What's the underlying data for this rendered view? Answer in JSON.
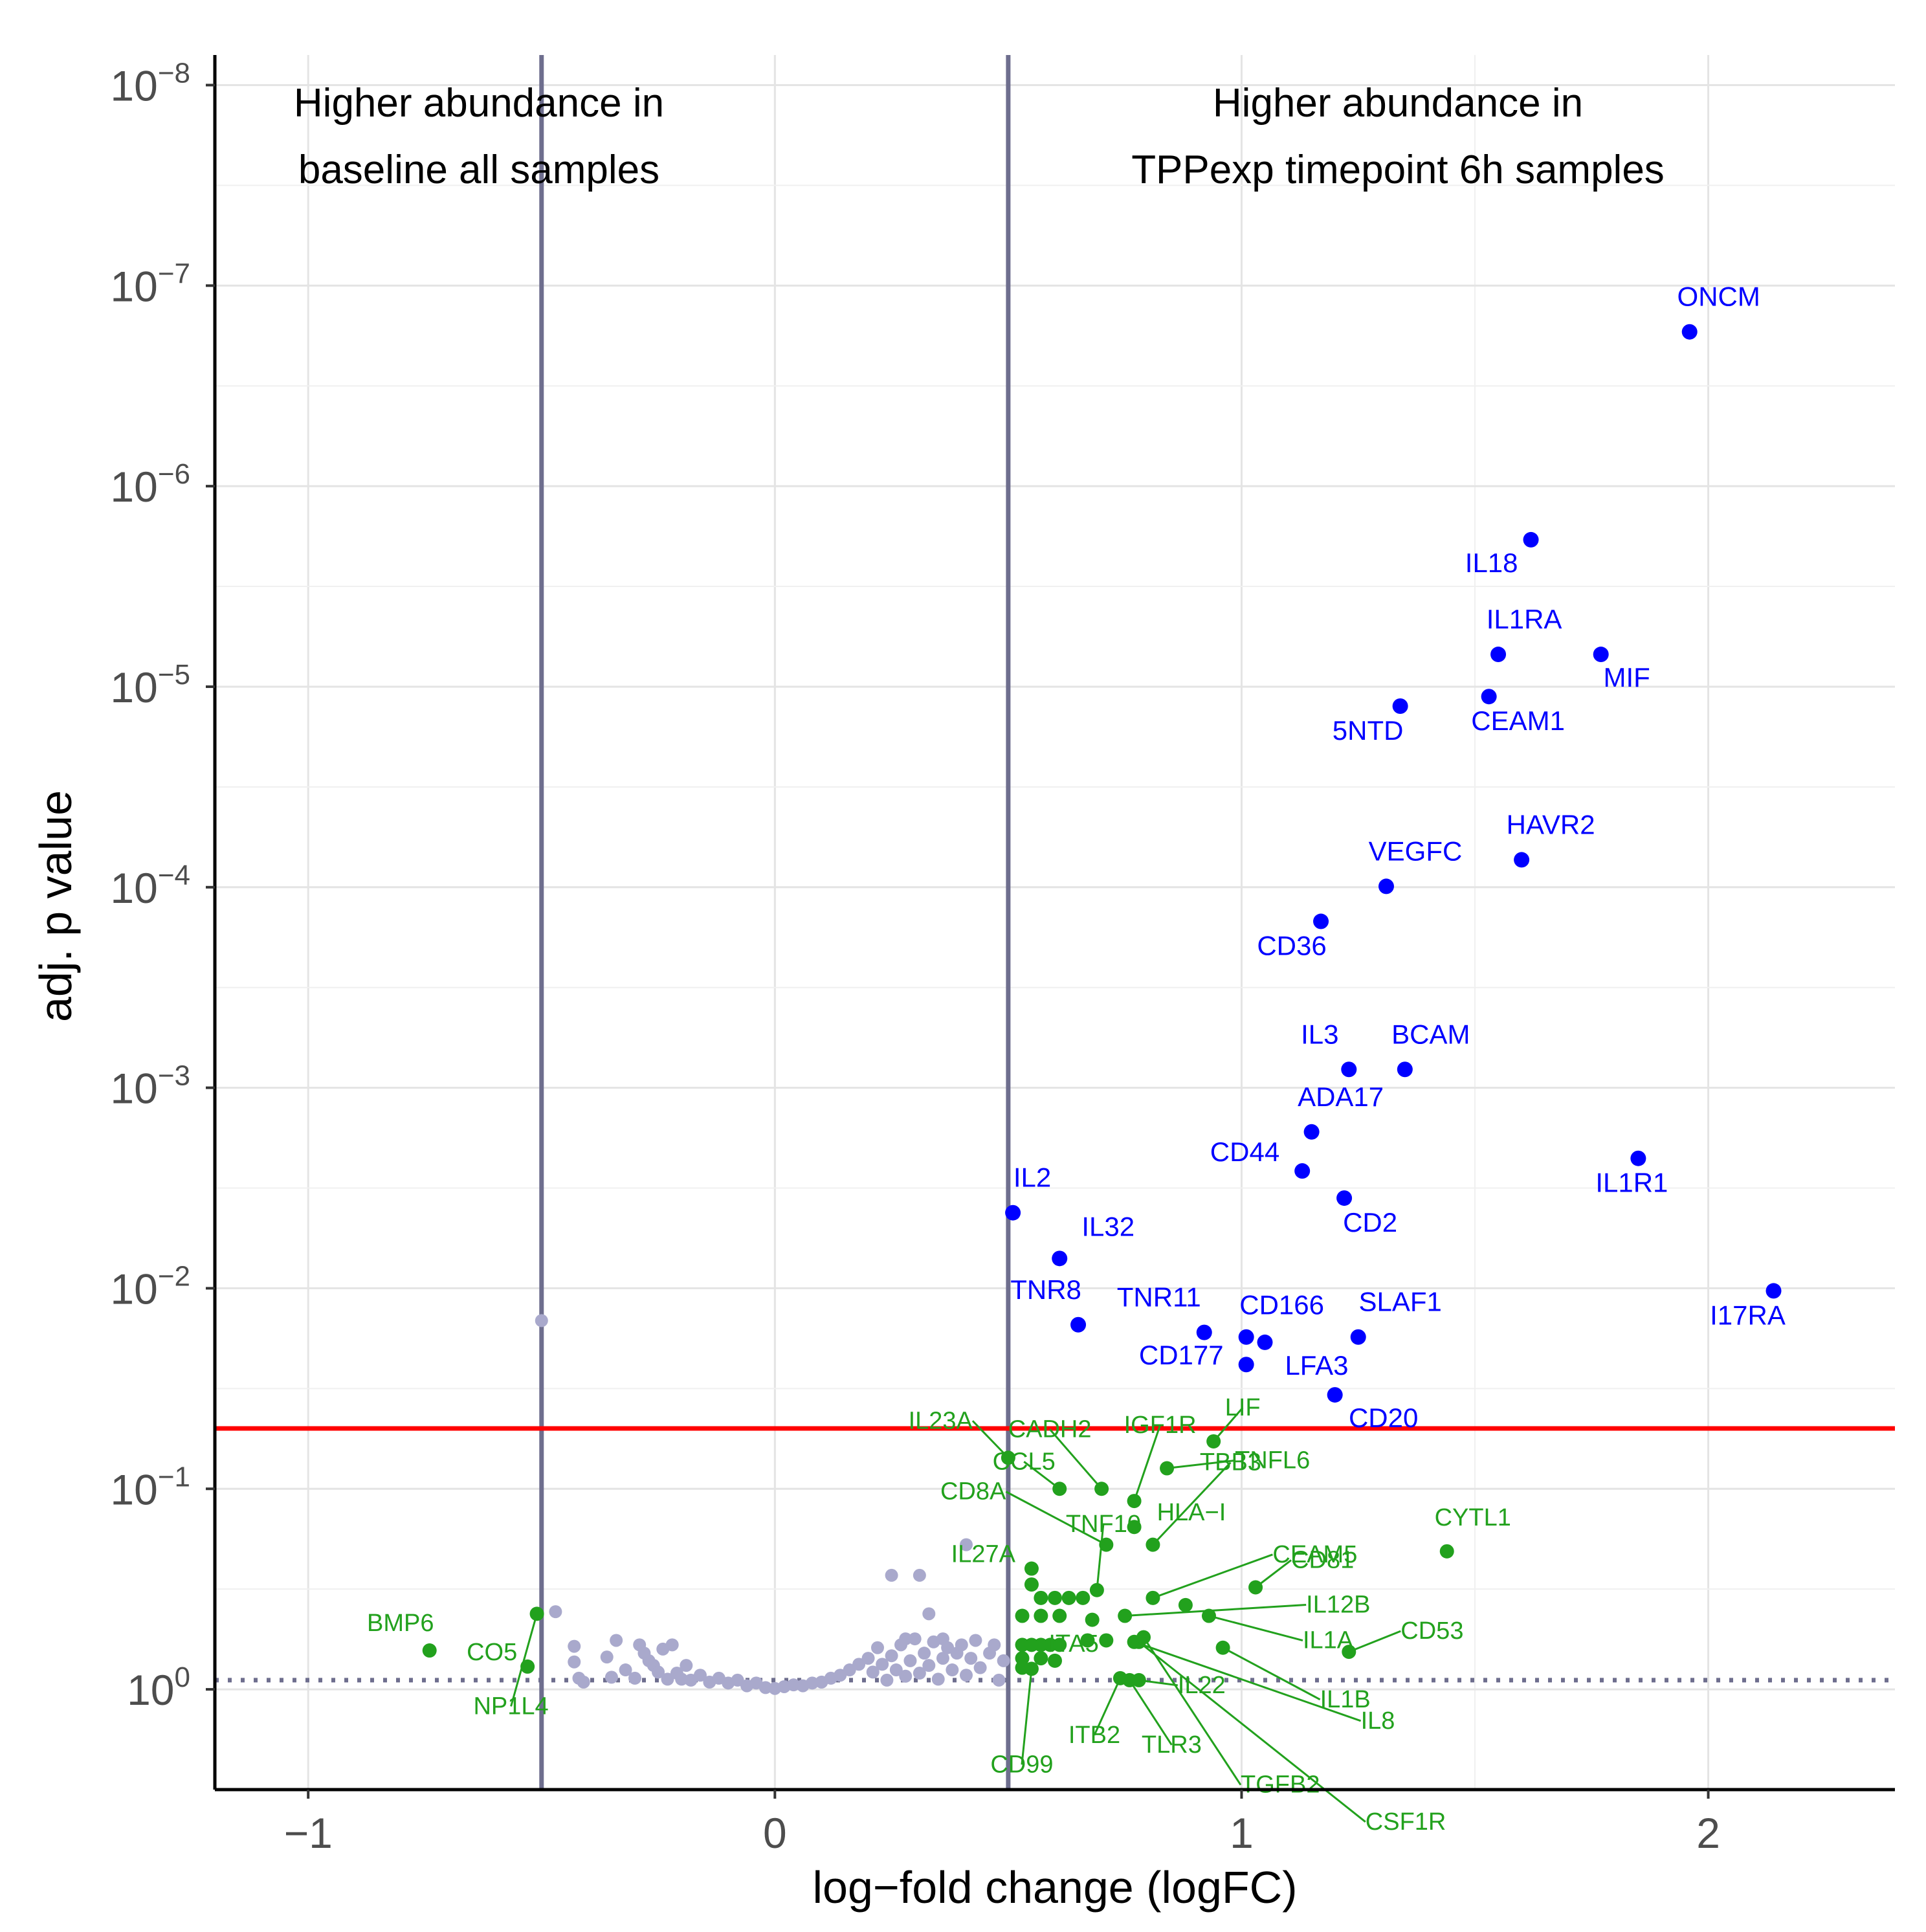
{
  "chart_data": {
    "type": "scatter",
    "title": "",
    "xlabel": "log−fold change (logFC)",
    "ylabel": "adj. p value",
    "xlim": [
      -1.2,
      2.4
    ],
    "ylim_log10": [
      0.5,
      -8.15
    ],
    "x_ticks": [
      {
        "value": -1,
        "label": "−1"
      },
      {
        "value": 0,
        "label": "0"
      },
      {
        "value": 1,
        "label": "1"
      },
      {
        "value": 2,
        "label": "2"
      }
    ],
    "y_ticks": [
      {
        "exp": -8,
        "base": "10",
        "sup": "−8"
      },
      {
        "exp": -7,
        "base": "10",
        "sup": "−7"
      },
      {
        "exp": -6,
        "base": "10",
        "sup": "−6"
      },
      {
        "exp": -5,
        "base": "10",
        "sup": "−5"
      },
      {
        "exp": -4,
        "base": "10",
        "sup": "−4"
      },
      {
        "exp": -3,
        "base": "10",
        "sup": "−3"
      },
      {
        "exp": -2,
        "base": "10",
        "sup": "−2"
      },
      {
        "exp": -1,
        "base": "10",
        "sup": "−1"
      },
      {
        "exp": 0,
        "base": "10",
        "sup": "0"
      }
    ],
    "annotation_left": [
      "Higher abundance in",
      "baseline all samples"
    ],
    "annotation_right": [
      "Higher abundance in",
      "TPPexp timepoint 6h samples"
    ],
    "logfc_threshold_lines": [
      -0.5,
      0.5
    ],
    "significance_threshold_p": 0.05,
    "dotted_reference_p": 0.9,
    "colors": {
      "significant": "#0000ff",
      "trend": "#22a11d",
      "not_significant": "#a9a9cc",
      "threshold_line": "#ff0000",
      "fc_lines": "#6e6e8e",
      "dotted_line": "#6e6e8e"
    },
    "significant": [
      {
        "label": "ONCM",
        "x": 1.96,
        "p": 1.7e-07
      },
      {
        "label": "IL18",
        "x": 1.62,
        "p": 1.85e-06
      },
      {
        "label": "IL1RA",
        "x": 1.55,
        "p": 6.9e-06
      },
      {
        "label": "MIF",
        "x": 1.77,
        "p": 6.9e-06
      },
      {
        "label": "CEAM1",
        "x": 1.53,
        "p": 1.12e-05
      },
      {
        "label": "5NTD",
        "x": 1.34,
        "p": 1.25e-05
      },
      {
        "label": "HAVR2",
        "x": 1.6,
        "p": 7.3e-05
      },
      {
        "label": "VEGFC",
        "x": 1.31,
        "p": 9.9e-05
      },
      {
        "label": "CD36",
        "x": 1.17,
        "p": 0.000148
      },
      {
        "label": "IL3",
        "x": 1.23,
        "p": 0.00081
      },
      {
        "label": "BCAM",
        "x": 1.35,
        "p": 0.00081
      },
      {
        "label": "ADA17",
        "x": 1.15,
        "p": 0.00166
      },
      {
        "label": "CD44",
        "x": 1.13,
        "p": 0.0026
      },
      {
        "label": "IL1R1",
        "x": 1.85,
        "p": 0.00225
      },
      {
        "label": "CD2",
        "x": 1.22,
        "p": 0.00355
      },
      {
        "label": "IL2",
        "x": 0.51,
        "p": 0.0042
      },
      {
        "label": "IL32",
        "x": 0.61,
        "p": 0.0071
      },
      {
        "label": "I17RA",
        "x": 2.14,
        "p": 0.0103
      },
      {
        "label": "TNR8",
        "x": 0.65,
        "p": 0.0152
      },
      {
        "label": "TNR11",
        "x": 0.92,
        "p": 0.0166
      },
      {
        "label": "CD166",
        "x": 1.01,
        "p": 0.0175
      },
      {
        "label": "SLAF1",
        "x": 1.25,
        "p": 0.0175
      },
      {
        "label": "LFA3",
        "x": 1.05,
        "p": 0.0186
      },
      {
        "label": "CD177",
        "x": 1.01,
        "p": 0.024
      },
      {
        "label": "CD20",
        "x": 1.2,
        "p": 0.034
      }
    ],
    "trend": [
      {
        "label": "LIF",
        "x": 0.94,
        "p": 0.058
      },
      {
        "label": "IL23A",
        "x": 0.5,
        "p": 0.07
      },
      {
        "label": "TNFL6",
        "x": 0.84,
        "p": 0.079
      },
      {
        "label": "CCL5",
        "x": 0.61,
        "p": 0.1
      },
      {
        "label": "CADH2",
        "x": 0.7,
        "p": 0.1
      },
      {
        "label": "IGF1R",
        "x": 0.77,
        "p": 0.115
      },
      {
        "label": "HLA−I",
        "x": 0.77,
        "p": 0.155
      },
      {
        "label": "CD8A",
        "x": 0.71,
        "p": 0.19
      },
      {
        "label": "TBB3",
        "x": 0.81,
        "p": 0.19
      },
      {
        "label": "CYTL1",
        "x": 1.44,
        "p": 0.205
      },
      {
        "label": "IL27A",
        "x": 0.55,
        "p": 0.25
      },
      {
        "label": "CD81",
        "x": 1.03,
        "p": 0.31
      },
      {
        "label": "TNF10",
        "x": 0.69,
        "p": 0.32
      },
      {
        "label": "CEAM5",
        "x": 0.81,
        "p": 0.35
      },
      {
        "label": "IL12B",
        "x": 0.75,
        "p": 0.43
      },
      {
        "label": "IL1A",
        "x": 0.93,
        "p": 0.43
      },
      {
        "label": "CD53",
        "x": 1.23,
        "p": 0.65
      },
      {
        "label": "TGFB2",
        "x": 0.79,
        "p": 0.55
      },
      {
        "label": "IL1B",
        "x": 0.96,
        "p": 0.62
      },
      {
        "label": "IL8",
        "x": 0.77,
        "p": 0.58
      },
      {
        "label": "CSF1R",
        "x": 0.78,
        "p": 0.58
      },
      {
        "label": "IL22",
        "x": 0.78,
        "p": 0.9
      },
      {
        "label": "ITA5",
        "x": 0.57,
        "p": 0.7
      },
      {
        "label": "CD99",
        "x": 0.55,
        "p": 0.79
      },
      {
        "label": "TLR3",
        "x": 0.76,
        "p": 0.9
      },
      {
        "label": "ITB2",
        "x": 0.74,
        "p": 0.88
      },
      {
        "label": "BMP6",
        "x": -0.74,
        "p": 0.64
      },
      {
        "label": "CO5",
        "x": -0.53,
        "p": 0.77
      },
      {
        "label": "NP1L4",
        "x": -0.51,
        "p": 0.42
      },
      {
        "label": "",
        "x": 0.55,
        "p": 0.3
      },
      {
        "label": "",
        "x": 0.57,
        "p": 0.35
      },
      {
        "label": "",
        "x": 0.6,
        "p": 0.35
      },
      {
        "label": "",
        "x": 0.63,
        "p": 0.35
      },
      {
        "label": "",
        "x": 0.66,
        "p": 0.35
      },
      {
        "label": "",
        "x": 0.53,
        "p": 0.43
      },
      {
        "label": "",
        "x": 0.57,
        "p": 0.43
      },
      {
        "label": "",
        "x": 0.61,
        "p": 0.43
      },
      {
        "label": "",
        "x": 0.53,
        "p": 0.6
      },
      {
        "label": "",
        "x": 0.55,
        "p": 0.6
      },
      {
        "label": "",
        "x": 0.57,
        "p": 0.6
      },
      {
        "label": "",
        "x": 0.59,
        "p": 0.6
      },
      {
        "label": "",
        "x": 0.61,
        "p": 0.6
      },
      {
        "label": "",
        "x": 0.67,
        "p": 0.57
      },
      {
        "label": "",
        "x": 0.71,
        "p": 0.57
      },
      {
        "label": "",
        "x": 0.53,
        "p": 0.7
      },
      {
        "label": "",
        "x": 0.53,
        "p": 0.78
      },
      {
        "label": "",
        "x": 0.6,
        "p": 0.72
      },
      {
        "label": "",
        "x": 0.68,
        "p": 0.45
      },
      {
        "label": "",
        "x": 0.88,
        "p": 0.38
      }
    ],
    "not_significant": [
      {
        "x": -0.5,
        "p": 0.0145
      },
      {
        "x": -0.47,
        "p": 0.41
      },
      {
        "x": -0.43,
        "p": 0.61
      },
      {
        "x": -0.43,
        "p": 0.73
      },
      {
        "x": -0.42,
        "p": 0.88
      },
      {
        "x": -0.41,
        "p": 0.92
      },
      {
        "x": -0.36,
        "p": 0.69
      },
      {
        "x": -0.35,
        "p": 0.87
      },
      {
        "x": -0.34,
        "p": 0.57
      },
      {
        "x": -0.32,
        "p": 0.8
      },
      {
        "x": -0.3,
        "p": 0.88
      },
      {
        "x": -0.29,
        "p": 0.6
      },
      {
        "x": -0.28,
        "p": 0.66
      },
      {
        "x": -0.27,
        "p": 0.72
      },
      {
        "x": -0.26,
        "p": 0.76
      },
      {
        "x": -0.25,
        "p": 0.82
      },
      {
        "x": -0.24,
        "p": 0.63
      },
      {
        "x": -0.23,
        "p": 0.89
      },
      {
        "x": -0.22,
        "p": 0.6
      },
      {
        "x": -0.21,
        "p": 0.83
      },
      {
        "x": -0.2,
        "p": 0.89
      },
      {
        "x": -0.19,
        "p": 0.76
      },
      {
        "x": -0.18,
        "p": 0.9
      },
      {
        "x": -0.16,
        "p": 0.85
      },
      {
        "x": -0.14,
        "p": 0.92
      },
      {
        "x": -0.12,
        "p": 0.88
      },
      {
        "x": -0.1,
        "p": 0.93
      },
      {
        "x": -0.08,
        "p": 0.9
      },
      {
        "x": -0.06,
        "p": 0.96
      },
      {
        "x": -0.04,
        "p": 0.93
      },
      {
        "x": -0.02,
        "p": 0.98
      },
      {
        "x": 0.0,
        "p": 0.99
      },
      {
        "x": 0.02,
        "p": 0.97
      },
      {
        "x": 0.04,
        "p": 0.95
      },
      {
        "x": 0.06,
        "p": 0.96
      },
      {
        "x": 0.08,
        "p": 0.93
      },
      {
        "x": 0.1,
        "p": 0.92
      },
      {
        "x": 0.12,
        "p": 0.88
      },
      {
        "x": 0.14,
        "p": 0.85
      },
      {
        "x": 0.16,
        "p": 0.8
      },
      {
        "x": 0.18,
        "p": 0.75
      },
      {
        "x": 0.2,
        "p": 0.7
      },
      {
        "x": 0.21,
        "p": 0.82
      },
      {
        "x": 0.22,
        "p": 0.62
      },
      {
        "x": 0.23,
        "p": 0.75
      },
      {
        "x": 0.24,
        "p": 0.9
      },
      {
        "x": 0.25,
        "p": 0.68
      },
      {
        "x": 0.26,
        "p": 0.8
      },
      {
        "x": 0.27,
        "p": 0.6
      },
      {
        "x": 0.28,
        "p": 0.86
      },
      {
        "x": 0.29,
        "p": 0.72
      },
      {
        "x": 0.3,
        "p": 0.56
      },
      {
        "x": 0.31,
        "p": 0.83
      },
      {
        "x": 0.32,
        "p": 0.66
      },
      {
        "x": 0.33,
        "p": 0.76
      },
      {
        "x": 0.34,
        "p": 0.58
      },
      {
        "x": 0.35,
        "p": 0.89
      },
      {
        "x": 0.36,
        "p": 0.7
      },
      {
        "x": 0.37,
        "p": 0.62
      },
      {
        "x": 0.38,
        "p": 0.8
      },
      {
        "x": 0.39,
        "p": 0.66
      },
      {
        "x": 0.4,
        "p": 0.6
      },
      {
        "x": 0.41,
        "p": 0.85
      },
      {
        "x": 0.42,
        "p": 0.7
      },
      {
        "x": 0.43,
        "p": 0.57
      },
      {
        "x": 0.44,
        "p": 0.78
      },
      {
        "x": 0.46,
        "p": 0.66
      },
      {
        "x": 0.47,
        "p": 0.6
      },
      {
        "x": 0.48,
        "p": 0.9
      },
      {
        "x": 0.49,
        "p": 0.72
      },
      {
        "x": 0.25,
        "p": 0.27
      },
      {
        "x": 0.31,
        "p": 0.27
      },
      {
        "x": 0.33,
        "p": 0.42
      },
      {
        "x": 0.41,
        "p": 0.19
      },
      {
        "x": 0.28,
        "p": 0.56
      },
      {
        "x": 0.36,
        "p": 0.56
      }
    ]
  }
}
